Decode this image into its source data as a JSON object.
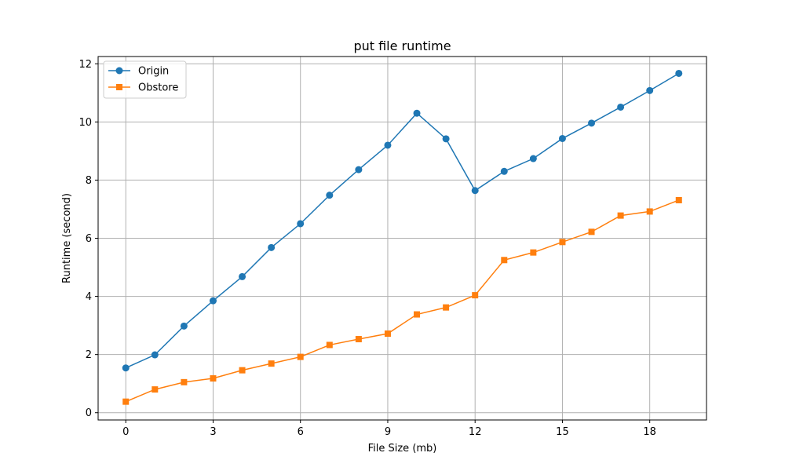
{
  "chart_data": {
    "type": "line",
    "title": "put file runtime",
    "xlabel": "File Size (mb)",
    "ylabel": "Runtime (second)",
    "xlim": [
      -0.95,
      19.95
    ],
    "ylim": [
      -0.25,
      12.25
    ],
    "xticks": [
      0,
      3,
      6,
      9,
      12,
      15,
      18
    ],
    "yticks": [
      0,
      2,
      4,
      6,
      8,
      10,
      12
    ],
    "grid": true,
    "legend_position": "upper-left",
    "x": [
      0,
      1,
      2,
      3,
      4,
      5,
      6,
      7,
      8,
      9,
      10,
      11,
      12,
      13,
      14,
      15,
      16,
      17,
      18,
      19
    ],
    "series": [
      {
        "name": "Origin",
        "color": "#1f77b4",
        "marker": "circle",
        "values": [
          1.54,
          1.99,
          2.98,
          3.85,
          4.68,
          5.68,
          6.5,
          7.48,
          8.36,
          9.2,
          10.3,
          9.42,
          7.64,
          8.3,
          8.74,
          9.43,
          9.96,
          10.51,
          11.08,
          11.67
        ]
      },
      {
        "name": "Obstore",
        "color": "#ff7f0e",
        "marker": "square",
        "values": [
          0.38,
          0.8,
          1.05,
          1.18,
          1.46,
          1.69,
          1.92,
          2.33,
          2.53,
          2.72,
          3.38,
          3.62,
          4.04,
          5.25,
          5.51,
          5.87,
          6.22,
          6.78,
          6.92,
          7.31
        ]
      }
    ]
  }
}
